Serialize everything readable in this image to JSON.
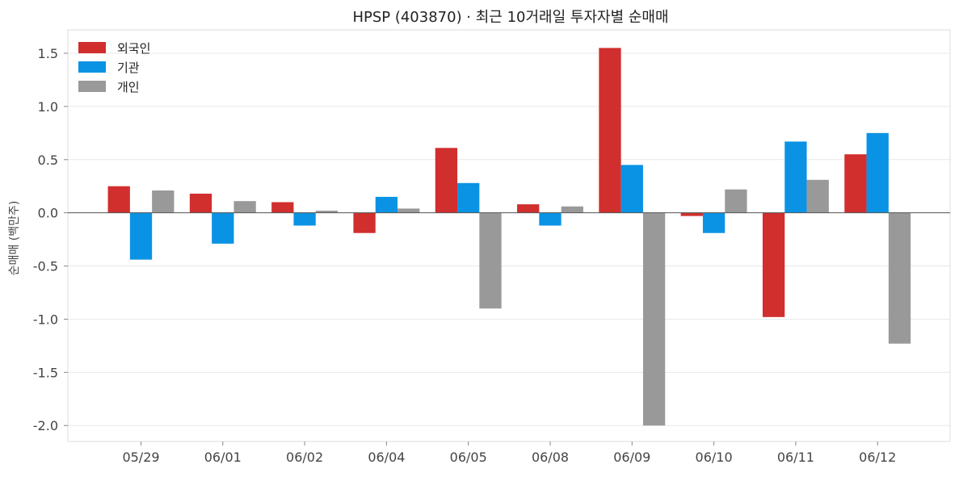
{
  "chart_data": {
    "type": "bar",
    "title": "HPSP (403870) · 최근 10거래일 투자자별 순매매",
    "xlabel": "",
    "ylabel": "순매매 (백만주)",
    "categories": [
      "05/29",
      "06/01",
      "06/02",
      "06/04",
      "06/05",
      "06/08",
      "06/09",
      "06/10",
      "06/11",
      "06/12"
    ],
    "series": [
      {
        "name": "외국인",
        "color": "#d12e2e",
        "values": [
          0.25,
          0.18,
          0.1,
          -0.19,
          0.61,
          0.08,
          1.55,
          -0.03,
          -0.98,
          0.55
        ]
      },
      {
        "name": "기관",
        "color": "#0a93e4",
        "values": [
          -0.44,
          -0.29,
          -0.12,
          0.15,
          0.28,
          -0.12,
          0.45,
          -0.19,
          0.67,
          0.75
        ]
      },
      {
        "name": "개인",
        "color": "#999999",
        "values": [
          0.21,
          0.11,
          0.02,
          0.04,
          -0.9,
          0.06,
          -2.0,
          0.22,
          0.31,
          -1.23
        ]
      }
    ],
    "ylim": [
      -2.15,
      1.72
    ],
    "yticks": [
      -2.0,
      -1.5,
      -1.0,
      -0.5,
      0.0,
      0.5,
      1.0,
      1.5
    ],
    "ytick_labels": [
      "-2.0",
      "-1.5",
      "-1.0",
      "-0.5",
      "0.0",
      "0.5",
      "1.0",
      "1.5"
    ],
    "grid": "horizontal",
    "legend": "top-left"
  }
}
